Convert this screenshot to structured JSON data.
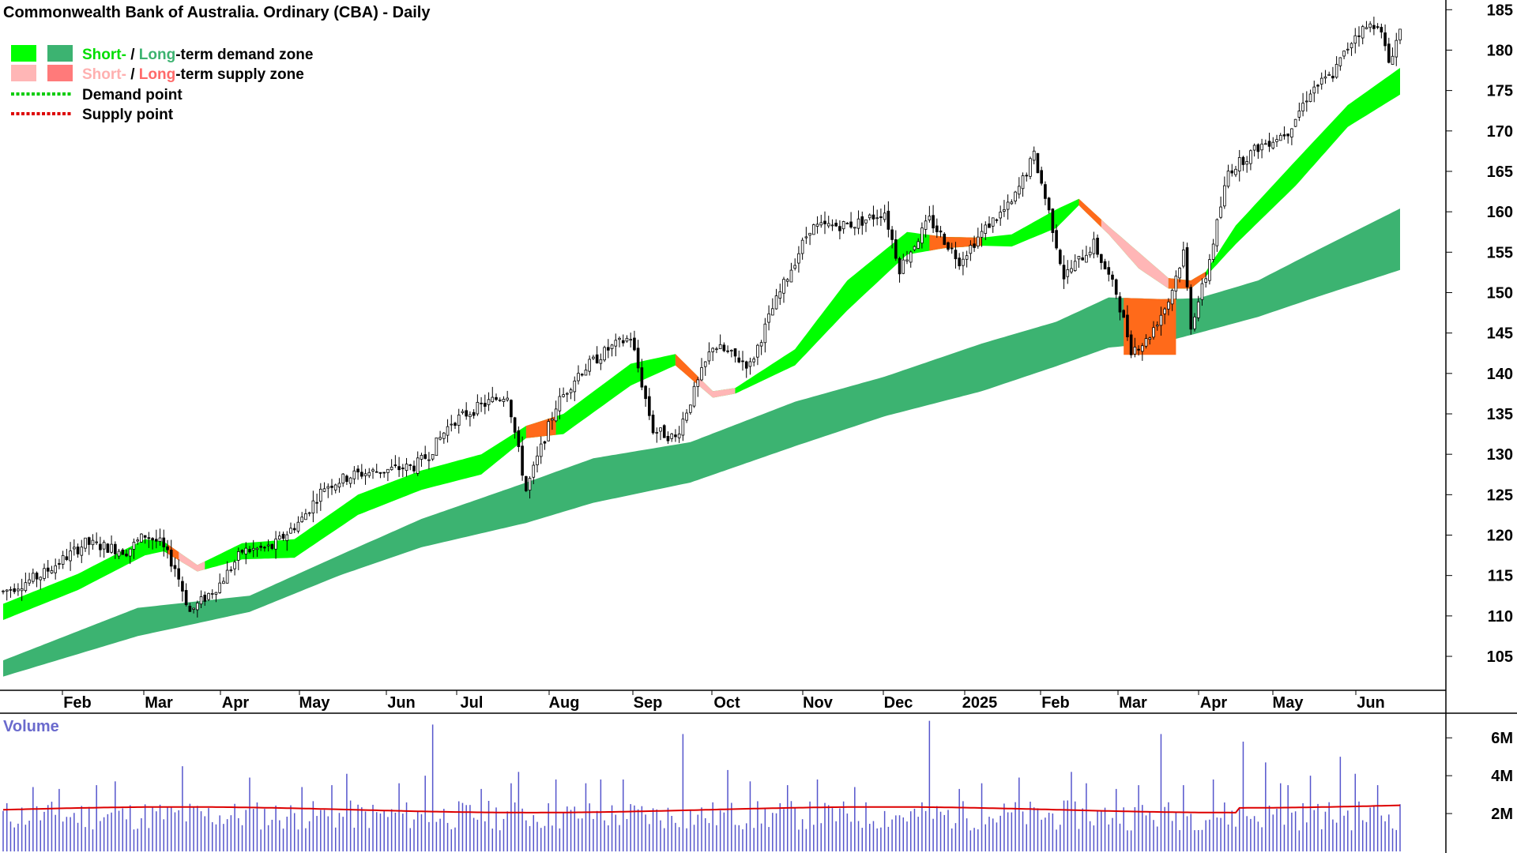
{
  "title": "Commonwealth Bank of Australia. Ordinary (CBA) - Daily",
  "legend": {
    "demand_short": "Short-",
    "demand_sep": " / ",
    "demand_long": "Long",
    "demand_rest": "-term demand zone",
    "supply_short": "Short-",
    "supply_sep": " / ",
    "supply_long": "Long",
    "supply_rest": "-term supply zone",
    "demand_point": "Demand point",
    "supply_point": "Supply point"
  },
  "colors": {
    "short_demand": "#00ff00",
    "long_demand": "#3cb371",
    "short_supply": "#ffb6b6",
    "long_supply": "#ff7a7a",
    "zone_overlap": "#ff6a1a",
    "demand_point": "#00cc00",
    "supply_point": "#dd0000",
    "volume_bar": "#5555cc",
    "volume_avg": "#dd0000",
    "volume_label": "#6a6acd"
  },
  "volume_label": "Volume",
  "chart_data": {
    "type": "candlestick",
    "period": "Daily",
    "x_labels": [
      "Feb",
      "Mar",
      "Apr",
      "May",
      "Jun",
      "Jul",
      "Aug",
      "Sep",
      "Oct",
      "Nov",
      "Dec",
      "2025",
      "Feb",
      "Mar",
      "Apr",
      "May",
      "Jun"
    ],
    "y_ticks": [
      105,
      110,
      115,
      120,
      125,
      130,
      135,
      140,
      145,
      150,
      155,
      160,
      165,
      170,
      175,
      180,
      185
    ],
    "ylim": [
      100.8,
      186.2
    ],
    "price_path": [
      [
        0,
        113
      ],
      [
        10,
        115
      ],
      [
        22,
        119
      ],
      [
        28,
        118.5
      ],
      [
        33,
        118
      ],
      [
        38,
        120
      ],
      [
        42,
        119
      ],
      [
        46,
        116
      ],
      [
        50,
        110.5
      ],
      [
        58,
        114
      ],
      [
        64,
        118
      ],
      [
        72,
        118.5
      ],
      [
        80,
        122
      ],
      [
        86,
        126
      ],
      [
        94,
        127.5
      ],
      [
        102,
        128
      ],
      [
        110,
        128.5
      ],
      [
        114,
        130
      ],
      [
        120,
        134
      ],
      [
        128,
        136
      ],
      [
        135,
        137.5
      ],
      [
        140,
        125.5
      ],
      [
        148,
        136
      ],
      [
        154,
        140
      ],
      [
        162,
        143
      ],
      [
        168,
        144.5
      ],
      [
        174,
        133
      ],
      [
        180,
        132
      ],
      [
        190,
        143.5
      ],
      [
        200,
        141
      ],
      [
        206,
        148
      ],
      [
        210,
        152
      ],
      [
        216,
        158
      ],
      [
        228,
        158.5
      ],
      [
        236,
        160
      ],
      [
        240,
        153
      ],
      [
        248,
        159
      ],
      [
        256,
        154
      ],
      [
        264,
        158.5
      ],
      [
        270,
        161
      ],
      [
        276,
        167
      ],
      [
        280,
        160
      ],
      [
        284,
        152
      ],
      [
        292,
        156
      ],
      [
        298,
        150
      ],
      [
        302,
        143
      ],
      [
        306,
        144
      ],
      [
        312,
        149
      ],
      [
        316,
        155
      ],
      [
        318,
        146
      ],
      [
        322,
        152
      ],
      [
        328,
        165
      ],
      [
        336,
        168
      ],
      [
        344,
        170
      ],
      [
        350,
        175
      ],
      [
        356,
        177
      ],
      [
        362,
        182
      ],
      [
        368,
        183.5
      ],
      [
        371,
        178.5
      ],
      [
        374,
        182.5
      ]
    ],
    "short_zone": [
      [
        0,
        109.5,
        111.5
      ],
      [
        20,
        113.2,
        115.2
      ],
      [
        38,
        117.5,
        119.5
      ],
      [
        43,
        118,
        119.2
      ],
      [
        52,
        115.5,
        116.3
      ],
      [
        64,
        117,
        119
      ],
      [
        78,
        117.2,
        119.5
      ],
      [
        95,
        122.5,
        125
      ],
      [
        112,
        125.6,
        128
      ],
      [
        128,
        127.5,
        130
      ],
      [
        140,
        132,
        133.5
      ],
      [
        150,
        132.5,
        135
      ],
      [
        168,
        138.5,
        141.2
      ],
      [
        180,
        141,
        142.4
      ],
      [
        190,
        137,
        137.8
      ],
      [
        196,
        137.5,
        138.2
      ],
      [
        212,
        141,
        143
      ],
      [
        226,
        147.8,
        151.5
      ],
      [
        242,
        154.7,
        157.5
      ],
      [
        252,
        155.5,
        156.9
      ],
      [
        262,
        155.8,
        156.8
      ],
      [
        270,
        155.7,
        157.2
      ],
      [
        282,
        158,
        160.3
      ],
      [
        288,
        160.8,
        161.6
      ],
      [
        296,
        157.2,
        158.2
      ],
      [
        304,
        153,
        155
      ],
      [
        312,
        150.5,
        151.8
      ],
      [
        318,
        150.5,
        151.5
      ],
      [
        322,
        152,
        152.6
      ],
      [
        330,
        156,
        158.3
      ],
      [
        346,
        163.2,
        166.3
      ],
      [
        360,
        170.5,
        173.2
      ],
      [
        374,
        174.5,
        177.8
      ]
    ],
    "long_zone": [
      [
        0,
        102.5,
        104.5
      ],
      [
        36,
        107.5,
        111
      ],
      [
        66,
        110.5,
        112.5
      ],
      [
        90,
        115,
        117.5
      ],
      [
        112,
        118.5,
        122
      ],
      [
        140,
        121.5,
        126.5
      ],
      [
        158,
        124,
        129.5
      ],
      [
        184,
        126.5,
        131.5
      ],
      [
        212,
        131,
        136.5
      ],
      [
        236,
        134.7,
        139.6
      ],
      [
        262,
        137.8,
        143.7
      ],
      [
        282,
        140.9,
        146.4
      ],
      [
        296,
        143.2,
        149.4
      ],
      [
        310,
        143.8,
        149.2
      ],
      [
        320,
        145,
        149.3
      ],
      [
        336,
        147,
        151.5
      ],
      [
        352,
        149.5,
        155.3
      ],
      [
        374,
        152.8,
        160.4
      ]
    ],
    "volume": {
      "y_ticks": [
        "2M",
        "4M",
        "6M"
      ],
      "ylim": [
        0,
        7.3
      ],
      "average_millions": 2.2,
      "spike_millions": [
        3.4,
        3.3,
        3.5,
        3.7,
        4.5,
        3.9,
        3.4,
        3.5,
        4.1,
        3.6,
        4.0,
        6.7,
        3.3,
        3.6,
        4.2,
        3.8,
        3.6,
        3.8,
        3.8,
        6.2,
        4.3,
        3.7,
        3.5,
        3.8,
        3.4,
        6.9,
        3.3,
        3.6,
        3.9,
        4.2,
        3.6,
        3.3,
        3.5,
        6.2,
        3.5,
        3.8,
        5.8,
        4.7,
        3.6,
        3.5,
        4.0,
        5.0,
        4.1,
        3.5
      ],
      "spike_days": [
        8,
        15,
        25,
        30,
        48,
        66,
        80,
        88,
        92,
        106,
        113,
        115,
        128,
        136,
        138,
        148,
        156,
        160,
        166,
        182,
        194,
        200,
        210,
        218,
        228,
        248,
        256,
        262,
        272,
        286,
        290,
        298,
        304,
        310,
        316,
        324,
        332,
        338,
        342,
        344,
        350,
        358,
        362,
        368
      ]
    }
  }
}
